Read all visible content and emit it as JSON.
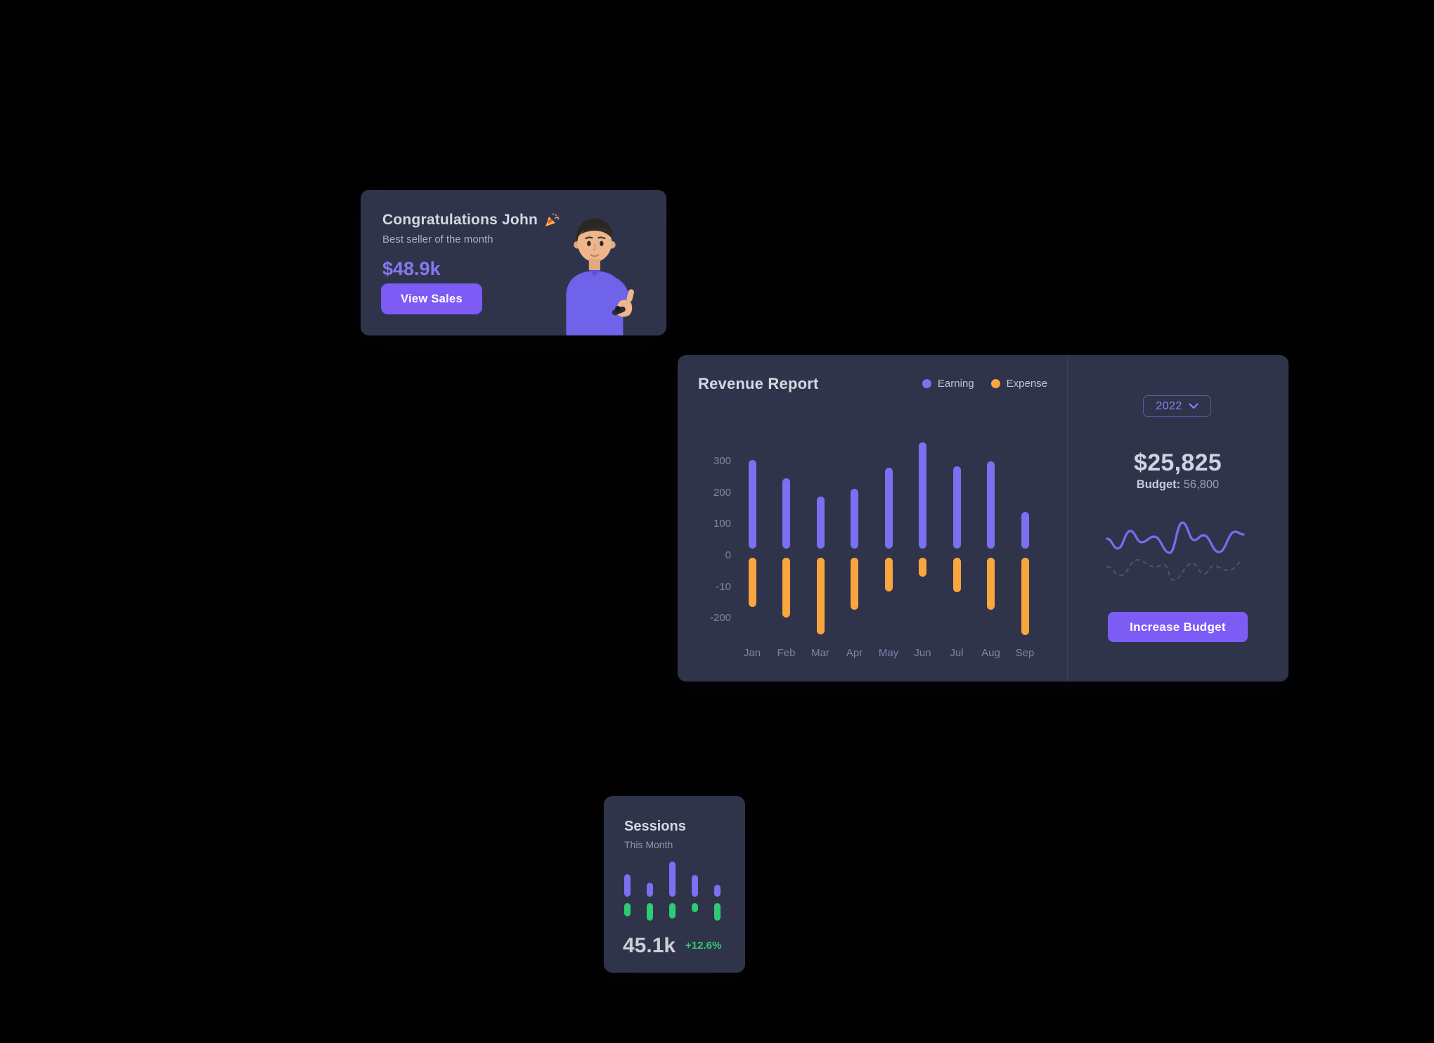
{
  "colors": {
    "background": "#000000",
    "card": "#30344a",
    "divider": "#3c4059",
    "heading_text": "#d6d7e3",
    "secondary_text": "#a9acc5",
    "axis_text": "#7f83a8",
    "purple_bar": "#7b70f1",
    "purple_button": "#7c5cf5",
    "purple_text": "#8478f3",
    "orange_bar": "#f9a63f",
    "green_bar": "#2dcb73",
    "spark_solid": "#7a6cf0",
    "spark_dashed": "#50536b"
  },
  "congrats_card": {
    "title": "Congratulations John",
    "title_icon": "party-popper",
    "subtitle": "Best seller of the month",
    "amount": "$48.9k",
    "button_label": "View Sales"
  },
  "revenue_card": {
    "title": "Revenue Report",
    "legend": [
      {
        "label": "Earning",
        "color": "#7b70f1"
      },
      {
        "label": "Expense",
        "color": "#f9a63f"
      }
    ],
    "year_select_value": "2022",
    "total": "$25,825",
    "budget_label": "Budget:",
    "budget_value": "56,800",
    "button_label": "Increase Budget"
  },
  "sessions_card": {
    "title": "Sessions",
    "subtitle": "This Month",
    "value": "45.1k",
    "delta": "+12.6%"
  },
  "chart_data": [
    {
      "id": "revenue-report",
      "type": "bar",
      "title": "Revenue Report",
      "categories": [
        "Jan",
        "Feb",
        "Mar",
        "Apr",
        "May",
        "Jun",
        "Jul",
        "Aug",
        "Sep"
      ],
      "series": [
        {
          "name": "Earning",
          "color": "#7b70f1",
          "values": [
            305,
            247,
            190,
            213,
            280,
            360,
            285,
            300,
            140
          ]
        },
        {
          "name": "Expense",
          "color": "#f9a63f",
          "values": [
            -160,
            -193,
            -247,
            -169,
            -111,
            -64,
            -113,
            -169,
            -249
          ]
        }
      ],
      "earning_baseline": 25,
      "expense_baseline": -5,
      "y_tick_labels": [
        "300",
        "200",
        "100",
        "0",
        "-10",
        "-200"
      ],
      "ylim": [
        -260,
        370
      ],
      "grid": false,
      "legend_position": "top-right"
    },
    {
      "id": "budget-sparkline",
      "type": "line",
      "series": [
        {
          "name": "actual",
          "style": "solid",
          "color": "#7a6cf0",
          "points": [
            [
              3,
              25
            ],
            [
              18,
              39
            ],
            [
              36,
              14
            ],
            [
              52,
              30
            ],
            [
              70,
              22
            ],
            [
              92,
              45
            ],
            [
              110,
              2
            ],
            [
              127,
              27
            ],
            [
              140,
              20
            ],
            [
              162,
              44
            ],
            [
              185,
              15
            ],
            [
              197,
              19
            ]
          ]
        },
        {
          "name": "budget",
          "style": "dashed",
          "color": "#50536b",
          "points": [
            [
              3,
              65
            ],
            [
              22,
              77
            ],
            [
              46,
              55
            ],
            [
              71,
              65
            ],
            [
              84,
              62
            ],
            [
              97,
              84
            ],
            [
              124,
              60
            ],
            [
              141,
              75
            ],
            [
              154,
              64
            ],
            [
              176,
              70
            ],
            [
              197,
              57
            ]
          ]
        }
      ],
      "axis": "hidden"
    },
    {
      "id": "sessions-mini",
      "type": "bar",
      "title": "Sessions This Month",
      "series": [
        {
          "name": "sessions-top",
          "color": "#7b70f1",
          "values": [
            32,
            20,
            50,
            31,
            17
          ]
        },
        {
          "name": "sessions-bottom",
          "color": "#2dcb73",
          "values": [
            -19,
            -25,
            -22,
            -13,
            -25
          ]
        }
      ],
      "axis": "hidden"
    }
  ]
}
